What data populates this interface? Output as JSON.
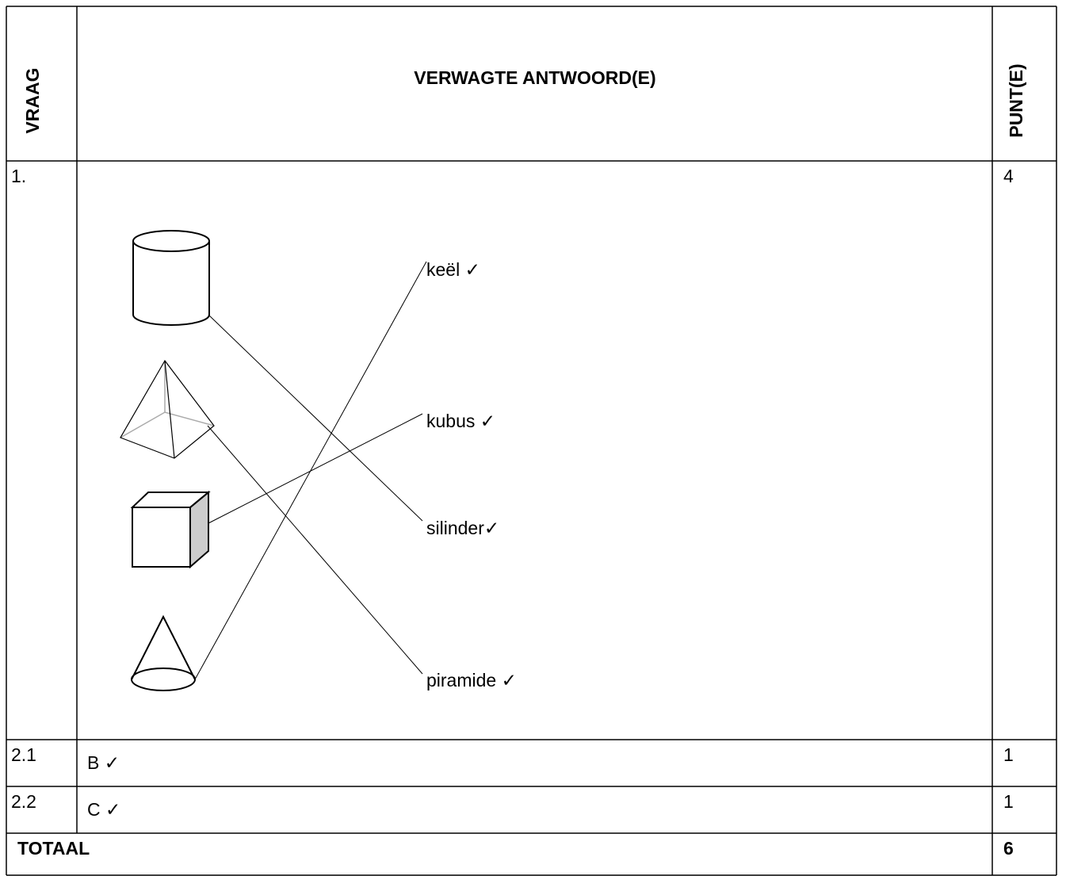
{
  "header": {
    "question": "VRAAG",
    "answer": "VERWAGTE ANTWOORD(E)",
    "marks": "PUNT(E)"
  },
  "rows": [
    {
      "question": "1.",
      "labels": [
        "keël ✓",
        "kubus ✓",
        "silinder✓",
        "piramide ✓"
      ],
      "marks": "4"
    },
    {
      "question": "2.1",
      "answer": "B ✓",
      "marks": "1"
    },
    {
      "question": "2.2",
      "answer": "C ✓",
      "marks": "1"
    }
  ],
  "total": {
    "label": "TOTAAL",
    "marks": "6"
  }
}
